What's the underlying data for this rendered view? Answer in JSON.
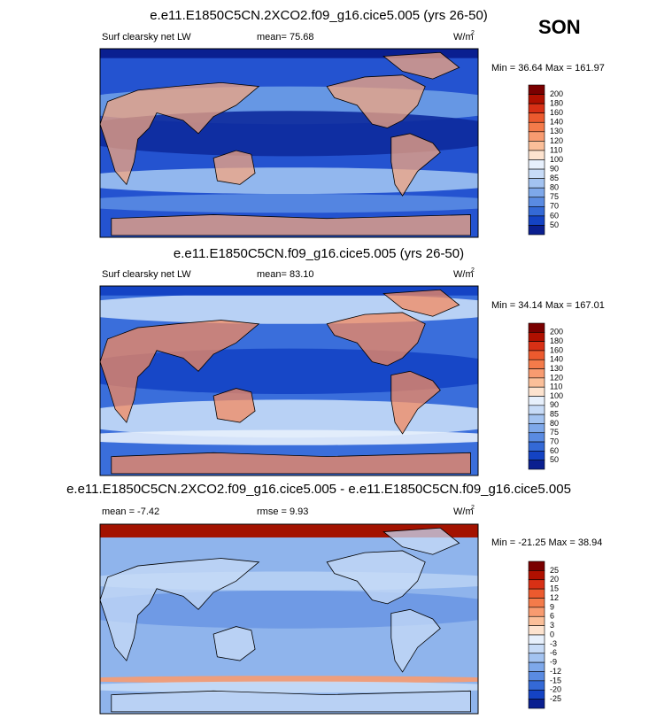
{
  "season": "SON",
  "panels": [
    {
      "title": "e.e11.E1850C5CN.2XCO2.f09_g16.cice5.005 (yrs 26-50)",
      "left_label": "Surf clearsky net LW",
      "stat_label": "mean=  75.68",
      "units": "W/m",
      "units_sup": "2",
      "minmax": "Min =  36.64 Max = 161.97",
      "colorbar_labels": [
        "200",
        "180",
        "160",
        "140",
        "130",
        "120",
        "110",
        "100",
        "90",
        "85",
        "80",
        "75",
        "70",
        "60",
        "50"
      ],
      "colorbar_colors": [
        "#7a0000",
        "#b01000",
        "#d83015",
        "#ec5a2e",
        "#f47b4a",
        "#f89b70",
        "#fbbf99",
        "#fde3cf",
        "#e7f0fc",
        "#c7dbf7",
        "#a3c3f1",
        "#7ea8ea",
        "#5a8be2",
        "#3469d6",
        "#1443c4",
        "#0a1f90"
      ]
    },
    {
      "title": "e.e11.E1850C5CN.f09_g16.cice5.005 (yrs 26-50)",
      "left_label": "Surf clearsky net LW",
      "stat_label": "mean=  83.10",
      "units": "W/m",
      "units_sup": "2",
      "minmax": "Min =  34.14 Max = 167.01",
      "colorbar_labels": [
        "200",
        "180",
        "160",
        "140",
        "130",
        "120",
        "110",
        "100",
        "90",
        "85",
        "80",
        "75",
        "70",
        "60",
        "50"
      ],
      "colorbar_colors": [
        "#7a0000",
        "#b01000",
        "#d83015",
        "#ec5a2e",
        "#f47b4a",
        "#f89b70",
        "#fbbf99",
        "#fde3cf",
        "#e7f0fc",
        "#c7dbf7",
        "#a3c3f1",
        "#7ea8ea",
        "#5a8be2",
        "#3469d6",
        "#1443c4",
        "#0a1f90"
      ]
    },
    {
      "title": "e.e11.E1850C5CN.2XCO2.f09_g16.cice5.005 - e.e11.E1850C5CN.f09_g16.cice5.005",
      "left_label": "mean =  -7.42",
      "stat_label": "rmse =   9.93",
      "units": "W/m",
      "units_sup": "2",
      "minmax": "Min = -21.25 Max =  38.94",
      "colorbar_labels": [
        "25",
        "20",
        "15",
        "12",
        "9",
        "6",
        "3",
        "0",
        "-3",
        "-6",
        "-9",
        "-12",
        "-15",
        "-20",
        "-25"
      ],
      "colorbar_colors": [
        "#7a0000",
        "#b01000",
        "#d83015",
        "#ec5a2e",
        "#f47b4a",
        "#f89b70",
        "#fbbf99",
        "#fde3cf",
        "#e7f0fc",
        "#c7dbf7",
        "#a3c3f1",
        "#7ea8ea",
        "#5a8be2",
        "#3469d6",
        "#1443c4",
        "#0a1f90"
      ]
    }
  ]
}
